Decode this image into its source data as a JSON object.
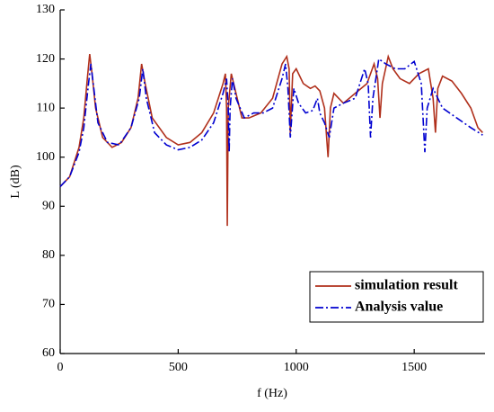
{
  "chart_data": {
    "type": "line",
    "x_label": "f (Hz)",
    "y_label": "L (dB)",
    "xlim": [
      0,
      1800
    ],
    "xticks": [
      0,
      500,
      1000,
      1500
    ],
    "ylim": [
      60,
      130
    ],
    "yticks": [
      60,
      70,
      80,
      90,
      100,
      110,
      120,
      130
    ],
    "grid": false,
    "legend": "lower right",
    "series": [
      {
        "name": "simulation result",
        "color": "#b0301c",
        "dash": "solid",
        "x": [
          0,
          40,
          80,
          100,
          115,
          125,
          135,
          150,
          180,
          220,
          260,
          300,
          330,
          345,
          360,
          390,
          450,
          500,
          550,
          600,
          650,
          690,
          700,
          705,
          708,
          712,
          725,
          740,
          770,
          800,
          850,
          900,
          940,
          960,
          970,
          975,
          985,
          1000,
          1030,
          1060,
          1080,
          1100,
          1120,
          1135,
          1145,
          1160,
          1200,
          1250,
          1300,
          1330,
          1345,
          1355,
          1365,
          1390,
          1410,
          1440,
          1480,
          1520,
          1560,
          1580,
          1590,
          1600,
          1620,
          1660,
          1700,
          1740,
          1770,
          1790
        ],
        "values": [
          94,
          96,
          102,
          108,
          116,
          121,
          117,
          110,
          104,
          102,
          103,
          106,
          112,
          119,
          115,
          108,
          104,
          102.5,
          103,
          105,
          109,
          115,
          117,
          110,
          86,
          110,
          117,
          114,
          108,
          108,
          109,
          112,
          119,
          120.5,
          118,
          105,
          117,
          118,
          115,
          114,
          114.5,
          113.5,
          110,
          100,
          110,
          113,
          111,
          113,
          115,
          119,
          116,
          108,
          115,
          120.5,
          118,
          116,
          115,
          117,
          118,
          112,
          105,
          114,
          116.5,
          115.5,
          113,
          110,
          106,
          105
        ]
      },
      {
        "name": "Analysis value",
        "color": "#0000d0",
        "dash": "dashdot",
        "x": [
          0,
          40,
          80,
          100,
          120,
          130,
          140,
          160,
          200,
          250,
          300,
          335,
          350,
          365,
          400,
          450,
          500,
          550,
          600,
          650,
          690,
          705,
          712,
          716,
          720,
          730,
          745,
          780,
          820,
          860,
          900,
          940,
          955,
          965,
          975,
          990,
          1010,
          1040,
          1070,
          1090,
          1100,
          1120,
          1140,
          1160,
          1200,
          1250,
          1290,
          1305,
          1315,
          1325,
          1350,
          1380,
          1420,
          1460,
          1500,
          1530,
          1545,
          1555,
          1580,
          1620,
          1680,
          1740,
          1790
        ],
        "values": [
          94,
          96,
          101,
          106,
          115,
          119,
          115,
          107,
          103,
          102.5,
          106,
          112,
          118,
          112,
          105,
          102.5,
          101.5,
          102,
          103.5,
          107,
          113,
          116,
          110,
          101,
          110,
          116,
          112,
          108,
          109,
          109,
          110,
          116,
          119,
          114,
          104,
          114,
          111,
          109,
          109.5,
          112,
          109,
          107,
          104,
          110,
          111,
          112,
          118,
          115,
          104,
          112,
          120,
          119,
          118,
          118,
          119.5,
          115,
          101,
          110,
          114,
          110,
          108,
          106,
          104.5
        ]
      }
    ]
  }
}
